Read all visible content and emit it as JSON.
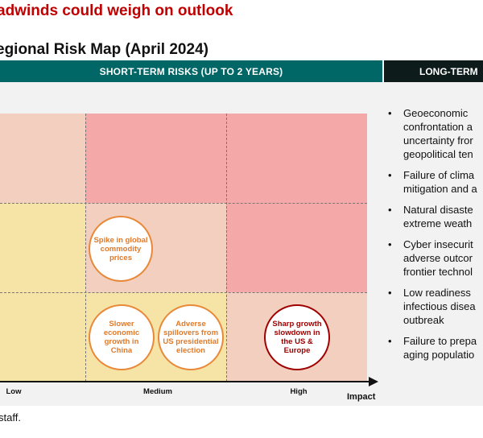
{
  "headline": "adwinds could weigh on outlook",
  "map_title": "egional Risk Map (April 2024)",
  "short_term_header": "SHORT-TERM RISKS (UP TO 2 YEARS)",
  "long_term_header": "LONG-TERM",
  "colors": {
    "teal_header": "#006666",
    "dark_header": "#0d1b1b",
    "high_risk": "#f4a8a8",
    "medium_risk": "#f2cfbe",
    "low_risk": "#f6e3a6",
    "orange_bubble": "#e8893a",
    "red_bubble": "#a00000",
    "headline_red": "#c00000"
  },
  "grid": {
    "rows": [
      [
        "medium_risk",
        "high_risk",
        "high_risk"
      ],
      [
        "low_risk",
        "medium_risk",
        "high_risk"
      ],
      [
        "low_risk",
        "low_risk",
        "medium_risk"
      ]
    ]
  },
  "risks": [
    {
      "label": "Spike in global commodity prices",
      "style": "orange"
    },
    {
      "label": "Slower economic growth in China",
      "style": "orange"
    },
    {
      "label": "Adverse spillovers from US presidential election",
      "style": "orange"
    },
    {
      "label": "Sharp growth slowdown in the US & Europe",
      "style": "red"
    }
  ],
  "x_axis": {
    "ticks": [
      "Low",
      "Medium",
      "High"
    ],
    "title": "Impact"
  },
  "long_term_risks": [
    "Geoeconomic\nconfrontation a\nuncertainty fror\ngeopolitical ten",
    "Failure of clima\nmitigation and a",
    "Natural disaste\nextreme weath",
    "Cyber insecurit\nadverse outcor\nfrontier technol",
    "Low readiness\ninfectious disea\noutbreak",
    "Failure to prepa\naging populatio"
  ],
  "long_term_bullet": "•",
  "source_text": "staff."
}
